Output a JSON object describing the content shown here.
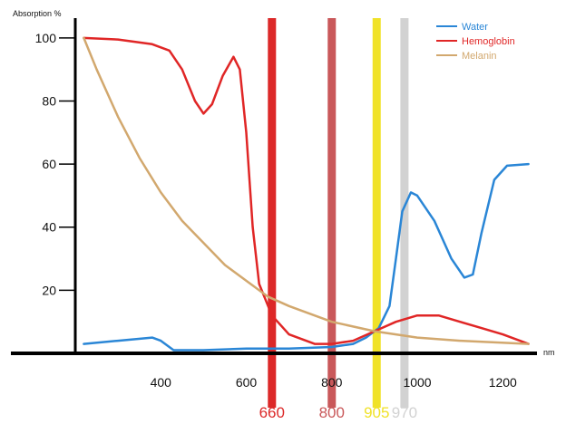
{
  "chart_data": {
    "type": "line",
    "title": "",
    "ylabel": "Absorption %",
    "xlabel": "nm",
    "xlim": [
      200,
      1280
    ],
    "ylim": [
      0,
      108
    ],
    "grid": false,
    "legend_position": "top-right",
    "x_ticks": [
      400,
      600,
      800,
      1000,
      1200
    ],
    "y_ticks": [
      20,
      40,
      60,
      80,
      100
    ],
    "series": [
      {
        "name": "Water",
        "color": "#2a86d6",
        "points": [
          [
            220,
            3
          ],
          [
            300,
            4
          ],
          [
            380,
            5
          ],
          [
            400,
            4
          ],
          [
            430,
            1
          ],
          [
            500,
            1
          ],
          [
            600,
            1.5
          ],
          [
            700,
            1.5
          ],
          [
            800,
            2
          ],
          [
            850,
            3
          ],
          [
            880,
            5
          ],
          [
            910,
            8
          ],
          [
            935,
            15
          ],
          [
            950,
            30
          ],
          [
            965,
            45
          ],
          [
            985,
            51
          ],
          [
            1000,
            50
          ],
          [
            1040,
            42
          ],
          [
            1080,
            30
          ],
          [
            1110,
            24
          ],
          [
            1130,
            25
          ],
          [
            1150,
            38
          ],
          [
            1180,
            55
          ],
          [
            1210,
            59.5
          ],
          [
            1260,
            60
          ]
        ]
      },
      {
        "name": "Hemoglobin",
        "color": "#e02626",
        "points": [
          [
            220,
            100
          ],
          [
            300,
            99.5
          ],
          [
            380,
            98
          ],
          [
            420,
            96
          ],
          [
            450,
            90
          ],
          [
            480,
            80
          ],
          [
            500,
            76
          ],
          [
            520,
            79
          ],
          [
            545,
            88
          ],
          [
            570,
            94
          ],
          [
            585,
            90
          ],
          [
            600,
            70
          ],
          [
            615,
            40
          ],
          [
            630,
            22
          ],
          [
            660,
            12
          ],
          [
            700,
            6
          ],
          [
            760,
            3
          ],
          [
            800,
            3
          ],
          [
            850,
            4
          ],
          [
            900,
            7
          ],
          [
            950,
            10
          ],
          [
            1000,
            12
          ],
          [
            1050,
            12
          ],
          [
            1100,
            10
          ],
          [
            1150,
            8
          ],
          [
            1200,
            6
          ],
          [
            1260,
            3
          ]
        ]
      },
      {
        "name": "Melanin",
        "color": "#d2a86e",
        "points": [
          [
            220,
            100
          ],
          [
            250,
            90
          ],
          [
            300,
            75
          ],
          [
            350,
            62
          ],
          [
            400,
            51
          ],
          [
            450,
            42
          ],
          [
            500,
            35
          ],
          [
            550,
            28
          ],
          [
            600,
            23
          ],
          [
            650,
            18
          ],
          [
            700,
            15
          ],
          [
            800,
            10
          ],
          [
            900,
            7
          ],
          [
            1000,
            5
          ],
          [
            1100,
            4
          ],
          [
            1260,
            3
          ]
        ]
      }
    ],
    "bands": [
      {
        "x": 660,
        "label": "660",
        "color": "#dc2828"
      },
      {
        "x": 800,
        "label": "800",
        "color": "#c9585a"
      },
      {
        "x": 905,
        "label": "905",
        "color": "#f0e228"
      },
      {
        "x": 970,
        "label": "970",
        "color": "#d2d2d2"
      }
    ]
  }
}
